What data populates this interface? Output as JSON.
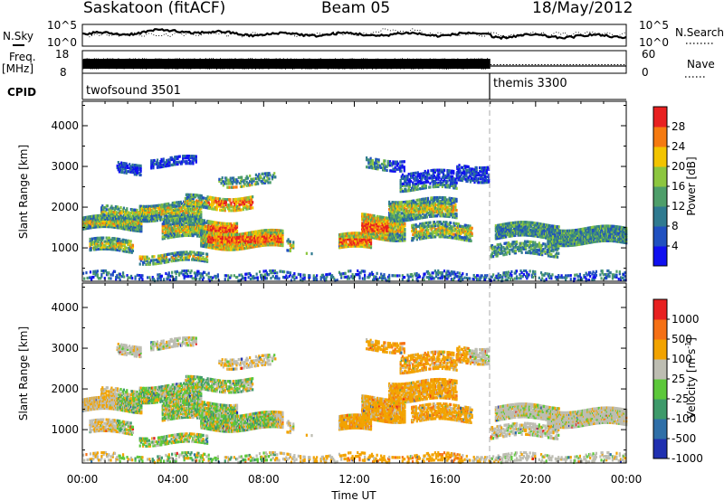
{
  "header": {
    "station": "Saskatoon (fitACF)",
    "beam": "Beam 05",
    "date": "18/May/2012"
  },
  "summary": {
    "left_labels": {
      "nsky": "N.Sky",
      "freq": "Freq.",
      "mhz": "[MHz]",
      "cpid": "CPID"
    },
    "right_labels": {
      "nsearch": "N.Search",
      "nave": "Nave"
    },
    "nsky_ticks": {
      "top": "10^5",
      "bottom": "10^0"
    },
    "nsearch_ticks": {
      "top": "10^5",
      "bottom": "10^0"
    },
    "freq_ticks": {
      "top": "18",
      "bottom": "8"
    },
    "nave_ticks": {
      "top": "60",
      "bottom": "0"
    },
    "cpid_segments": [
      {
        "label": "twofsound 3501",
        "start_hour": 0.0,
        "end_hour": 18.0
      },
      {
        "label": "themis 3300",
        "start_hour": 18.0,
        "end_hour": 24.0
      }
    ]
  },
  "chart_data": [
    {
      "type": "heatmap",
      "name": "power",
      "ylabel": "Slant Range [km]",
      "yticks": [
        1000,
        2000,
        3000,
        4000
      ],
      "ylim": [
        180,
        4600
      ],
      "xlim": [
        0,
        24
      ],
      "colorbar": {
        "label": "Power [dB]",
        "ticks": [
          "4",
          "8",
          "12",
          "16",
          "20",
          "24",
          "28"
        ],
        "colors": [
          "#1010f0",
          "#2050c0",
          "#2f7a90",
          "#4e9e6a",
          "#8cc63f",
          "#f2c400",
          "#f57a10",
          "#e82020"
        ]
      }
    },
    {
      "type": "heatmap",
      "name": "velocity",
      "ylabel": "Slant Range [km]",
      "yticks": [
        1000,
        2000,
        3000,
        4000
      ],
      "ylim": [
        180,
        4600
      ],
      "xlim": [
        0,
        24
      ],
      "xlabel": "Time UT",
      "xticklabels": [
        "00:00",
        "04:00",
        "08:00",
        "12:00",
        "16:00",
        "20:00",
        "00:00"
      ],
      "colorbar": {
        "label": "Velocity [m s-1]",
        "ticks": [
          "1000",
          "500",
          "100",
          "25",
          "-25",
          "-100",
          "-500",
          "-1000"
        ],
        "colors": [
          "#2030b0",
          "#2f6fa8",
          "#3e9a6a",
          "#5cc83a",
          "#bdbdb2",
          "#f2a300",
          "#f57015",
          "#e82020"
        ]
      }
    }
  ]
}
